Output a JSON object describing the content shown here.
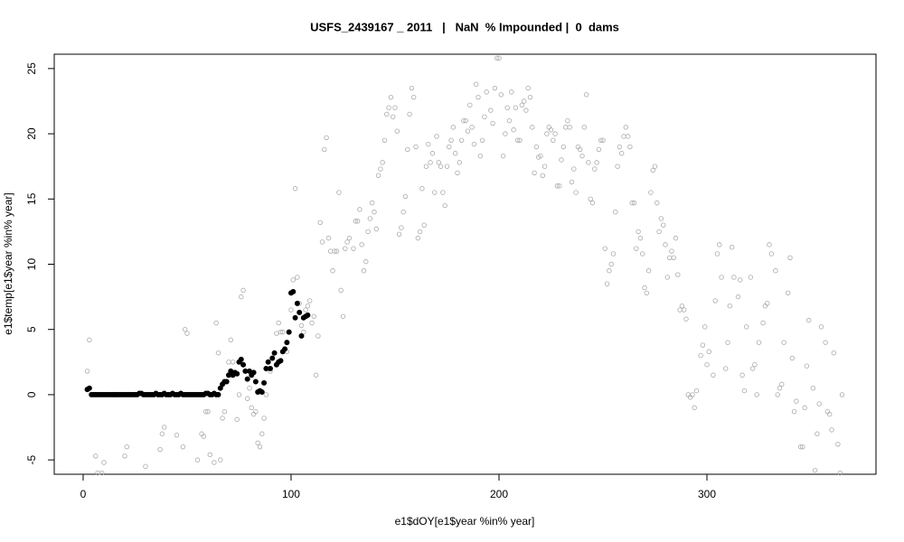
{
  "chart_data": {
    "type": "scatter",
    "title": "USFS_2439167 _ 2011   |   NaN  % Impounded |  0  dams",
    "x_label": "e1$dOY[e1$year %in% year]",
    "y_label": "e1$temp[e1$year %in% year]",
    "xlim": [
      -13.9,
      381.3
    ],
    "ylim": [
      -6.1,
      26.1
    ],
    "xticks": [
      0,
      100,
      200,
      300
    ],
    "yticks": [
      -5,
      0,
      5,
      10,
      15,
      20,
      25
    ],
    "series": [
      {
        "color": "#aaaaaa",
        "filled": false,
        "x": [
          2,
          3,
          4,
          6,
          7,
          9,
          10,
          20,
          21,
          30,
          37,
          38,
          39,
          45,
          48,
          49,
          50,
          55,
          57,
          58,
          59,
          60,
          61,
          63,
          64,
          65,
          66,
          67,
          68,
          70,
          71,
          72,
          74,
          75,
          76,
          77,
          79,
          80,
          81,
          82,
          83,
          84,
          85,
          86,
          87,
          88,
          90,
          93,
          94,
          95,
          96,
          98,
          100,
          101,
          102,
          103,
          104,
          105,
          106,
          107,
          108,
          109,
          110,
          111,
          112,
          113,
          114,
          115,
          116,
          117,
          118,
          119,
          120,
          121,
          122,
          123,
          124,
          125,
          126,
          127,
          128,
          130,
          131,
          132,
          133,
          134,
          135,
          136,
          137,
          138,
          139,
          140,
          141,
          142,
          143,
          144,
          145,
          146,
          147,
          148,
          149,
          150,
          151,
          152,
          153,
          154,
          155,
          156,
          157,
          158,
          159,
          160,
          161,
          162,
          163,
          164,
          165,
          166,
          167,
          168,
          169,
          170,
          171,
          172,
          173,
          174,
          175,
          176,
          177,
          178,
          179,
          180,
          181,
          182,
          183,
          184,
          185,
          186,
          187,
          188,
          189,
          190,
          191,
          192,
          193,
          194,
          196,
          197,
          198,
          199,
          200,
          201,
          202,
          203,
          204,
          205,
          206,
          207,
          208,
          209,
          210,
          211,
          212,
          213,
          214,
          215,
          216,
          217,
          218,
          219,
          220,
          221,
          222,
          223,
          224,
          225,
          226,
          227,
          228,
          229,
          230,
          231,
          232,
          233,
          234,
          235,
          236,
          237,
          238,
          239,
          240,
          241,
          242,
          243,
          244,
          245,
          246,
          247,
          248,
          249,
          250,
          251,
          252,
          253,
          254,
          255,
          256,
          257,
          258,
          259,
          260,
          261,
          262,
          263,
          264,
          265,
          266,
          267,
          268,
          269,
          270,
          271,
          272,
          273,
          274,
          275,
          276,
          277,
          278,
          279,
          280,
          281,
          282,
          283,
          284,
          285,
          286,
          287,
          288,
          289,
          290,
          291,
          292,
          293,
          294,
          295,
          297,
          298,
          299,
          300,
          301,
          303,
          304,
          305,
          306,
          307,
          309,
          310,
          311,
          312,
          313,
          315,
          316,
          317,
          318,
          319,
          321,
          322,
          323,
          324,
          325,
          327,
          328,
          329,
          330,
          331,
          333,
          334,
          335,
          336,
          337,
          339,
          340,
          341,
          342,
          343,
          345,
          346,
          347,
          348,
          349,
          351,
          352,
          353,
          354,
          355,
          357,
          358,
          359,
          360,
          361,
          363,
          364,
          365
        ],
        "values": [
          1.8,
          4.2,
          0,
          -4.7,
          -6,
          -6,
          -5.2,
          -4.7,
          -4,
          -5.5,
          -4.2,
          -3,
          -2.5,
          -3.1,
          -4,
          5,
          4.7,
          -5,
          -3,
          -3.2,
          -1.3,
          -1.3,
          -4.6,
          -5.2,
          5.5,
          3.2,
          -5,
          -1.8,
          -1.3,
          2.5,
          4.2,
          2.5,
          -1.9,
          0,
          7.5,
          8,
          -0.3,
          0.5,
          -1,
          -1.5,
          -1.3,
          -3.7,
          -4,
          -3,
          -1.8,
          0,
          1.8,
          4.7,
          5.5,
          4.8,
          4.8,
          3.3,
          6.5,
          8.8,
          15.8,
          9,
          7,
          5.3,
          4.8,
          6.5,
          6.8,
          7.2,
          5.5,
          6,
          1.5,
          4.5,
          13.2,
          11.7,
          18.8,
          19.7,
          12,
          11,
          9.5,
          11,
          11,
          15.5,
          8,
          6,
          11.2,
          11.7,
          12,
          11.2,
          13.3,
          13.3,
          14.2,
          11.5,
          9.5,
          10.2,
          12.5,
          13.5,
          14.7,
          14,
          12.7,
          16.8,
          17.3,
          17.8,
          19.5,
          21.5,
          22,
          22.8,
          21.3,
          22,
          20.2,
          12.3,
          12.8,
          14,
          15.2,
          18.8,
          21.5,
          23.5,
          22.8,
          19,
          12,
          12.5,
          15.8,
          13,
          17.5,
          19.2,
          17.8,
          18.5,
          15.5,
          19.8,
          17.8,
          17.5,
          15.5,
          14.5,
          17.5,
          19,
          19.5,
          20.5,
          18.5,
          17,
          17.8,
          19.5,
          21,
          21,
          20.2,
          22.2,
          20.5,
          19.2,
          23.8,
          22.8,
          18.3,
          19.5,
          21.3,
          23.2,
          21.8,
          20.8,
          23.5,
          25.8,
          25.8,
          23,
          18.3,
          20,
          22,
          21,
          23.2,
          20.3,
          22,
          19.5,
          19.5,
          22.2,
          22.5,
          21.8,
          23.5,
          22.8,
          20.5,
          17,
          19,
          18.2,
          18.3,
          16.8,
          17.5,
          20,
          20.5,
          20.3,
          19.5,
          20,
          16,
          16,
          18,
          19,
          20.5,
          21,
          20.5,
          16.3,
          17.3,
          15.5,
          19,
          18.8,
          18.3,
          20.5,
          23,
          17.8,
          15,
          14.7,
          17.3,
          17.8,
          18.8,
          19.5,
          19.5,
          11.2,
          8.5,
          9.5,
          10,
          10.8,
          14,
          17.5,
          19,
          18.5,
          19.8,
          20.5,
          19.8,
          19,
          14.7,
          14.7,
          11.2,
          12.5,
          12,
          10.8,
          8.2,
          7.8,
          9.5,
          15.5,
          17.2,
          17.5,
          14.7,
          12.5,
          13.5,
          13,
          11.5,
          9,
          10.5,
          11,
          10.5,
          12,
          9.2,
          6.5,
          6.8,
          6.5,
          5.8,
          0,
          -0.2,
          0,
          -1,
          0.3,
          3,
          3.8,
          5.2,
          2.3,
          3.3,
          1.5,
          7.2,
          10.8,
          11.5,
          9,
          2,
          4,
          6.8,
          11.3,
          9,
          7.5,
          8.8,
          1.5,
          0.3,
          5.2,
          9,
          2,
          2.3,
          0,
          4,
          5.5,
          6.8,
          7,
          11.5,
          10.8,
          9.5,
          0,
          0.5,
          0.8,
          4,
          7.8,
          10.5,
          2.8,
          -1.3,
          -0.5,
          -4,
          -4,
          -1,
          2.2,
          5.7,
          0.5,
          -5.8,
          -3,
          -0.7,
          5.2,
          4,
          -1.3,
          -1.5,
          -2.7,
          3.2,
          -3.8,
          -6,
          0
        ]
      },
      {
        "color": "#000000",
        "filled": true,
        "x": [
          2,
          3,
          4,
          5,
          6,
          7,
          8,
          9,
          10,
          11,
          12,
          13,
          14,
          15,
          16,
          17,
          18,
          19,
          20,
          21,
          22,
          23,
          24,
          25,
          26,
          27,
          28,
          29,
          30,
          31,
          32,
          33,
          34,
          35,
          36,
          37,
          38,
          39,
          40,
          41,
          42,
          43,
          44,
          45,
          46,
          47,
          48,
          49,
          50,
          51,
          52,
          53,
          54,
          55,
          56,
          57,
          58,
          59,
          60,
          61,
          62,
          63,
          64,
          65,
          66,
          67,
          68,
          69,
          70,
          71,
          72,
          73,
          74,
          75,
          76,
          77,
          78,
          79,
          80,
          81,
          82,
          83,
          84,
          85,
          86,
          87,
          88,
          89,
          90,
          91,
          92,
          93,
          94,
          95,
          96,
          97,
          98,
          99,
          100,
          101,
          102,
          103,
          104,
          105,
          106,
          107,
          108
        ],
        "values": [
          0.4,
          0.5,
          0,
          0,
          0,
          0,
          0,
          0,
          0,
          0,
          0,
          0,
          0,
          0,
          0,
          0,
          0,
          0,
          0,
          0,
          0,
          0,
          0,
          0,
          0,
          0.1,
          0.1,
          0,
          0,
          0,
          0,
          0,
          0,
          0.1,
          0,
          0,
          0,
          0.1,
          0,
          0,
          0,
          0.1,
          0,
          0,
          0,
          0.1,
          0,
          0,
          0,
          0,
          0,
          0,
          0,
          0,
          0,
          0,
          0,
          0.1,
          0.1,
          0,
          0,
          0.1,
          0,
          0,
          0.5,
          0.8,
          1,
          1,
          1.5,
          1.8,
          1.5,
          1.7,
          1.6,
          2.5,
          2.7,
          2.3,
          1.8,
          1.2,
          1.8,
          1.5,
          1.7,
          1,
          0.2,
          0.3,
          0.2,
          0.9,
          2,
          2.5,
          2,
          2.8,
          3.2,
          2.3,
          2.5,
          2.6,
          3.3,
          3.5,
          4,
          4.8,
          7.8,
          7.9,
          5.9,
          7,
          6.3,
          4.5,
          5.9,
          6,
          6.1
        ]
      }
    ]
  }
}
